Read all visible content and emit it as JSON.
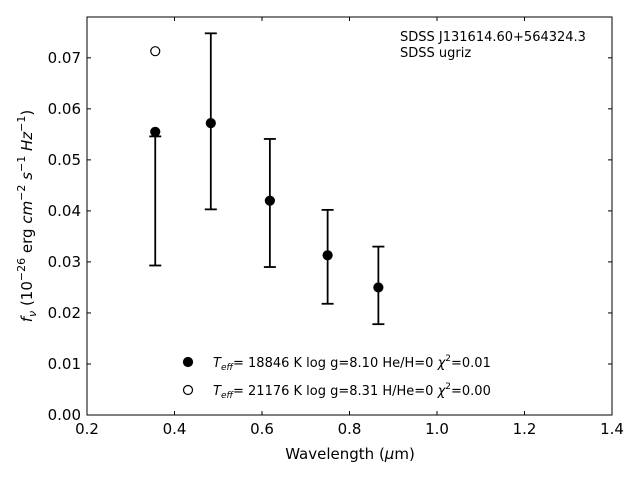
{
  "chart_data": {
    "type": "scatter",
    "annotation_lines": [
      "SDSS J131614.60+564324.3",
      "SDSS ugriz"
    ],
    "xlabel": "Wavelength (μm)",
    "ylabel": "f_ν (10^-26 erg cm^-2 s^-1 Hz^-1)",
    "xlim": [
      0.2,
      1.4
    ],
    "ylim": [
      0.0,
      0.078
    ],
    "x_ticks": [
      0.2,
      0.4,
      0.6,
      0.8,
      1.0,
      1.2,
      1.4
    ],
    "x_tick_labels": [
      "0.2",
      "0.4",
      "0.6",
      "0.8",
      "1.0",
      "1.2",
      "1.4"
    ],
    "y_ticks": [
      0.0,
      0.01,
      0.02,
      0.03,
      0.04,
      0.05,
      0.06,
      0.07
    ],
    "y_tick_labels": [
      "0.00",
      "0.01",
      "0.02",
      "0.03",
      "0.04",
      "0.05",
      "0.06",
      "0.07"
    ],
    "grid": false,
    "legend_position": "bottom-center",
    "observed": {
      "x": [
        0.356,
        0.483,
        0.618,
        0.75,
        0.866
      ],
      "y": [
        0.0555,
        0.0572,
        0.042,
        0.0313,
        0.025
      ],
      "yerr_low": [
        0.0293,
        0.0403,
        0.029,
        0.0218,
        0.0178
      ],
      "yerr_high": [
        0.0546,
        0.0748,
        0.0541,
        0.0402,
        0.033
      ]
    },
    "series": [
      {
        "name": "T_eff= 18846 K  log g=8.10  He/H=0  χ²=0.01",
        "marker": "filled-circle",
        "x": [
          0.356,
          0.483,
          0.618,
          0.75,
          0.866
        ],
        "y": [
          0.0555,
          0.0572,
          0.042,
          0.0313,
          0.025
        ]
      },
      {
        "name": "T_eff= 21176 K  log g=8.31  H/He=0  χ²=0.00",
        "marker": "open-circle",
        "x": [
          0.356
        ],
        "y": [
          0.0713
        ]
      }
    ],
    "legend": [
      {
        "marker": "filled-circle",
        "teff_sub": "eff",
        "text": "= 18846 K  log g=8.10  He/H=0  ",
        "chi_sup": "2",
        "chi_val": "=0.01"
      },
      {
        "marker": "open-circle",
        "teff_sub": "eff",
        "text": "= 21176 K  log g=8.31  H/He=0  ",
        "chi_sup": "2",
        "chi_val": "=0.00"
      }
    ]
  }
}
